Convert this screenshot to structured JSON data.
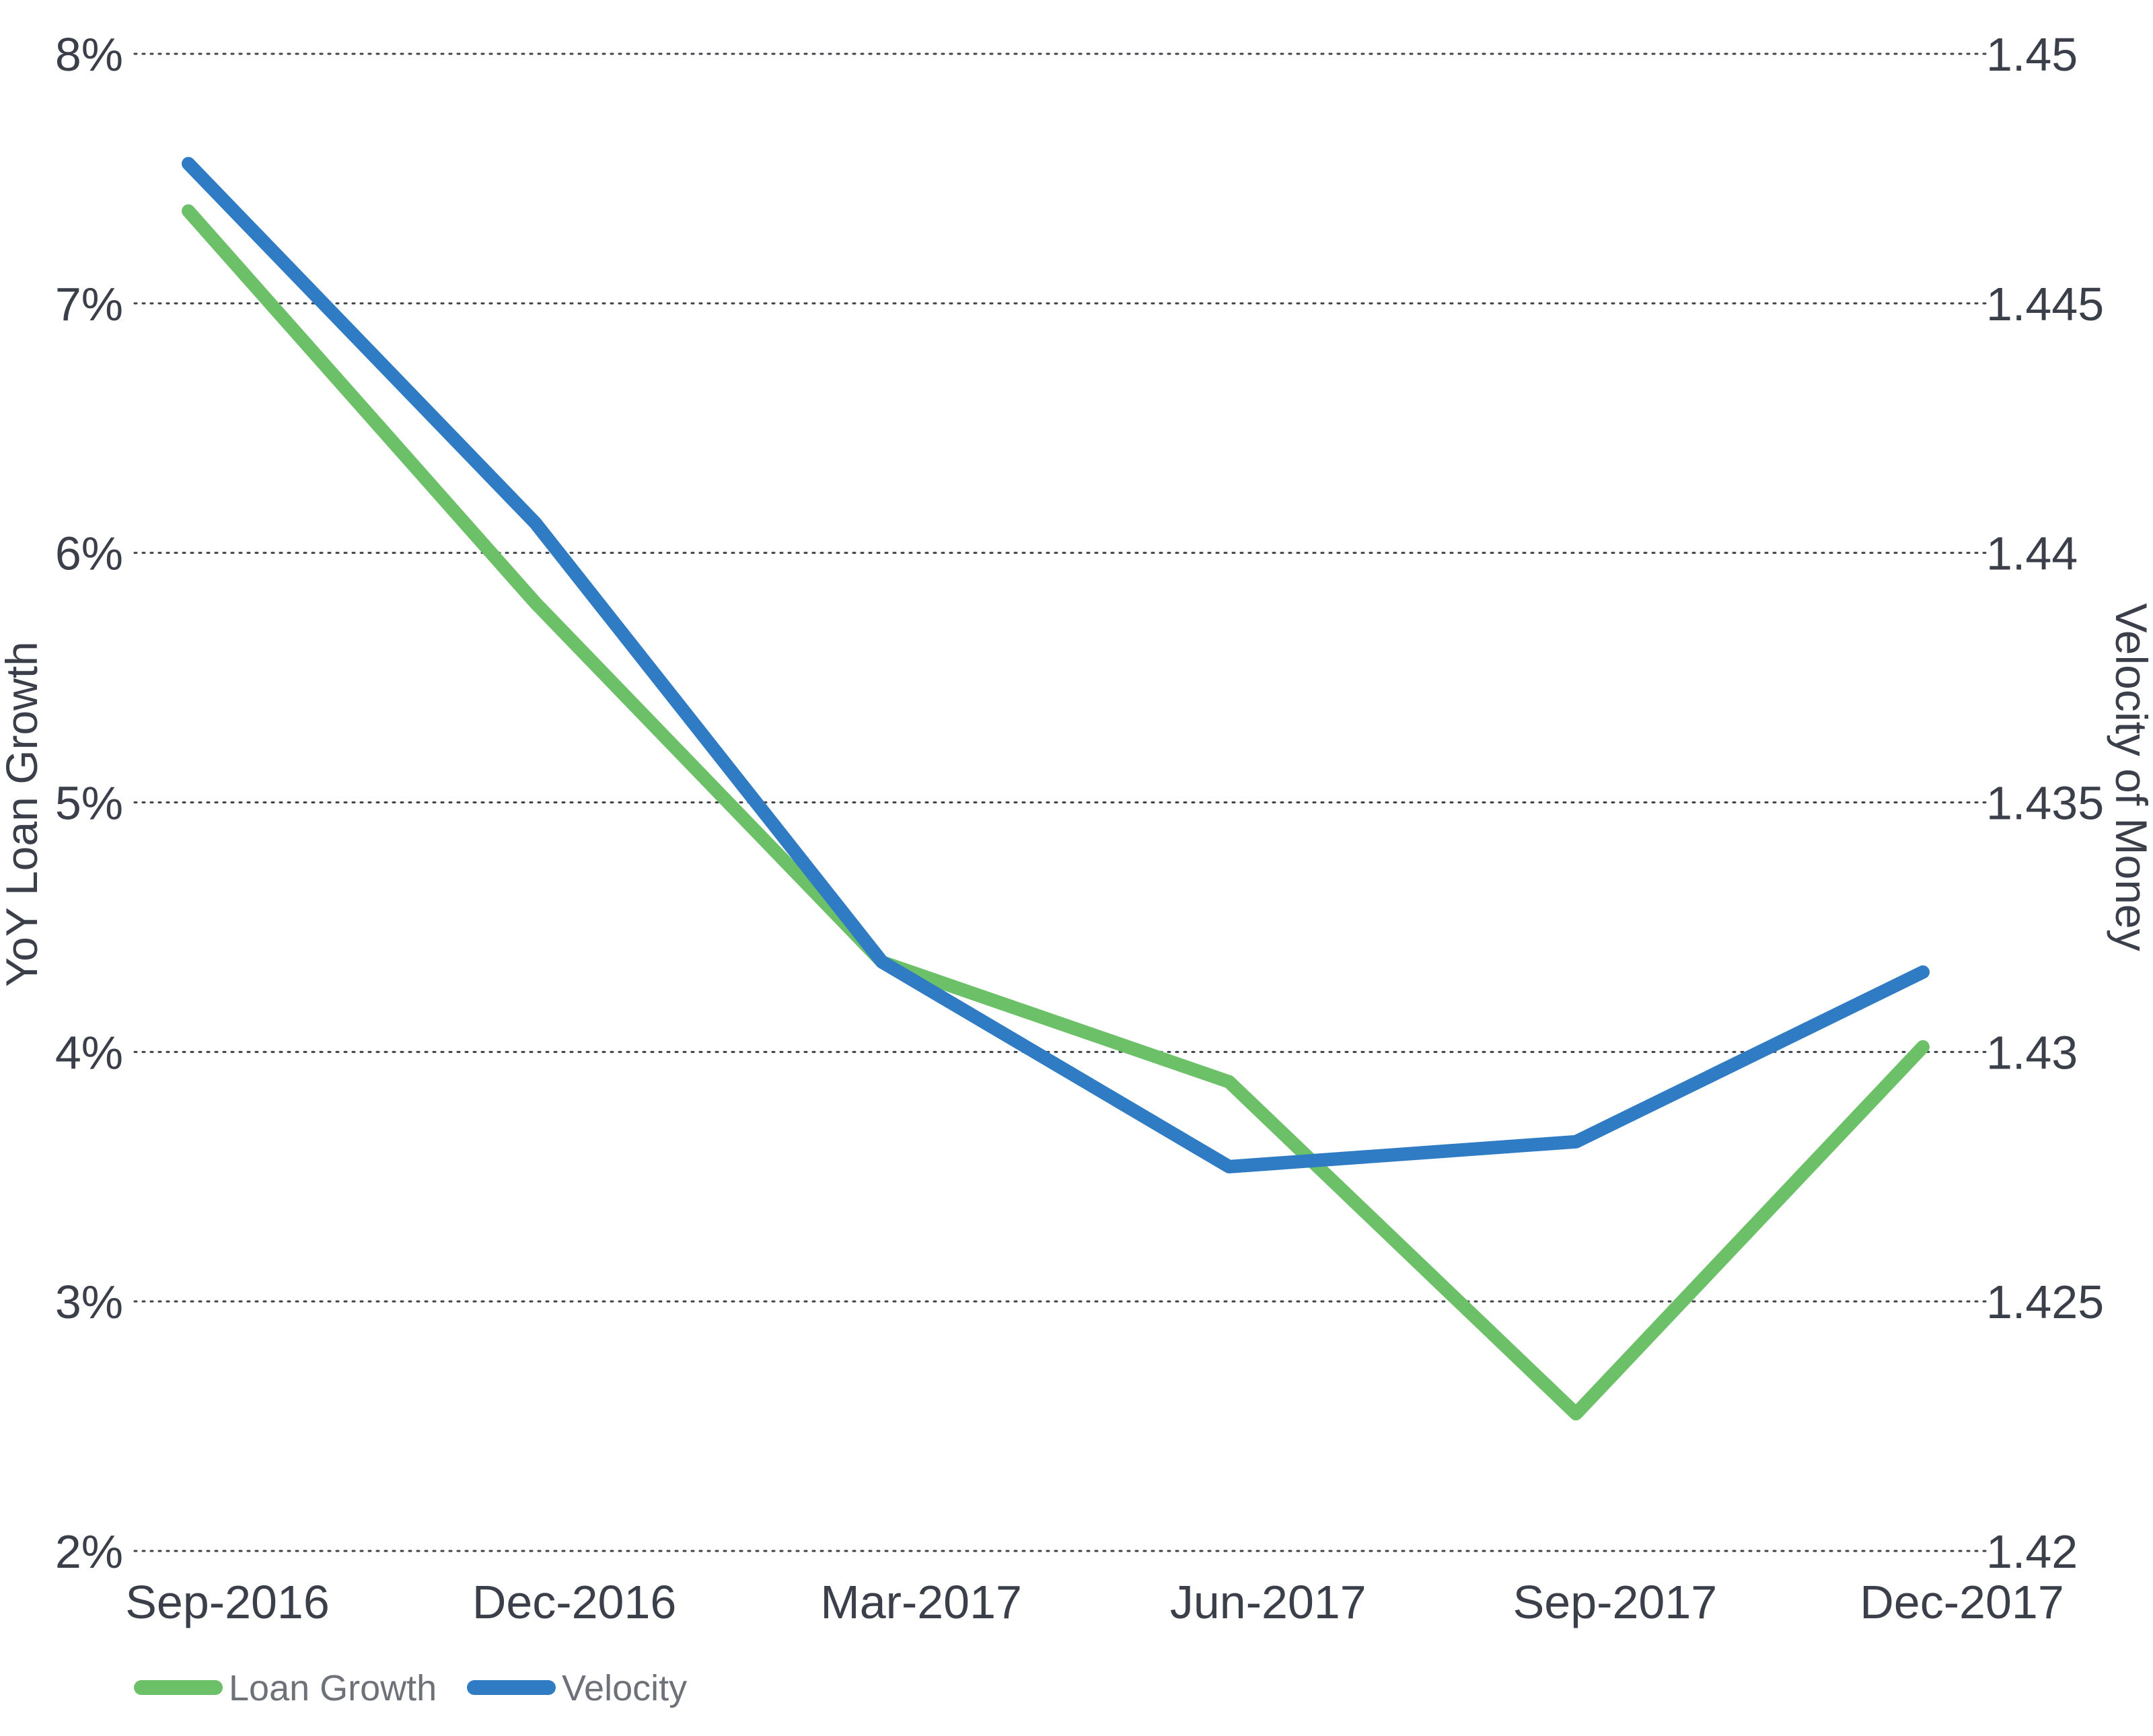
{
  "chart_data": {
    "type": "line",
    "categories": [
      "Sep-2016",
      "Dec-2016",
      "Mar-2017",
      "Jun-2017",
      "Sep-2017",
      "Dec-2017"
    ],
    "ylabel": "YoY Loan Growth",
    "y2label": "Velocity of Money",
    "ylim": [
      0.02,
      0.08
    ],
    "y2lim": [
      1.42,
      1.45
    ],
    "y_ticks": [
      "2%",
      "3%",
      "4%",
      "5%",
      "6%",
      "7%",
      "8%"
    ],
    "y2_ticks": [
      "1.42",
      "1.425",
      "1.43",
      "1.435",
      "1.44",
      "1.445",
      "1.45"
    ],
    "grid": true,
    "legend_position": "bottom-left",
    "series": [
      {
        "name": "Loan Growth",
        "axis": "left",
        "color": "#6cc067",
        "values": [
          0.0737,
          0.058,
          0.0436,
          0.0388,
          0.0255,
          0.0402
        ]
      },
      {
        "name": "Velocity",
        "axis": "right",
        "color": "#2f7bc4",
        "values": [
          1.4478,
          1.4406,
          1.4318,
          1.4277,
          1.4282,
          1.4316
        ]
      }
    ]
  }
}
